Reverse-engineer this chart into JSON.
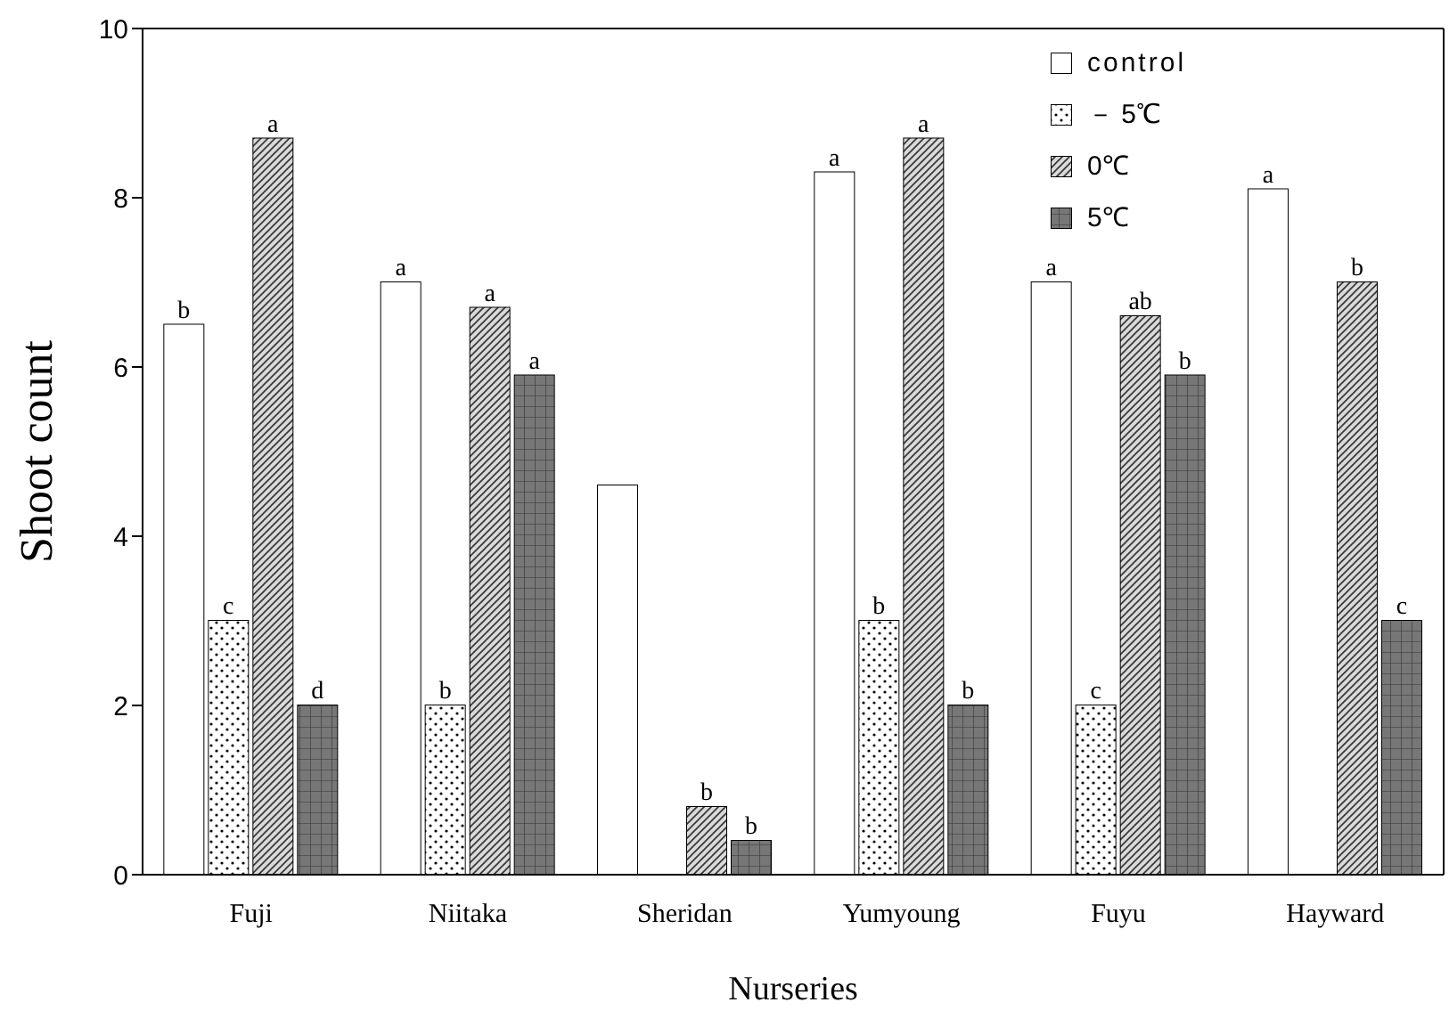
{
  "chart_data": {
    "type": "bar",
    "xlabel": "Nurseries",
    "ylabel": "Shoot count",
    "categories": [
      "Fuji",
      "Niitaka",
      "Sheridan",
      "Yumyoung",
      "Fuyu",
      "Hayward"
    ],
    "series": [
      {
        "name": "control",
        "color": "#ffffff",
        "values": [
          6.5,
          7.0,
          4.6,
          8.3,
          7.0,
          8.1
        ],
        "value_labels": [
          "b",
          "a",
          null,
          "a",
          "a",
          "a"
        ]
      },
      {
        "name": "－ 5℃",
        "color": "#ffffff",
        "values": [
          3.0,
          2.0,
          null,
          3.0,
          2.0,
          null
        ],
        "value_labels": [
          "c",
          "b",
          null,
          "b",
          "c",
          null
        ]
      },
      {
        "name": "0℃",
        "color": "#d9d9d9",
        "values": [
          8.7,
          6.7,
          0.8,
          8.7,
          6.6,
          7.0
        ],
        "value_labels": [
          "a",
          "a",
          "b",
          "a",
          "ab",
          "b"
        ]
      },
      {
        "name": "5℃",
        "color": "#777777",
        "values": [
          2.0,
          5.9,
          0.4,
          2.0,
          5.9,
          3.0
        ],
        "value_labels": [
          "d",
          "a",
          "b",
          "b",
          "b",
          "c"
        ]
      }
    ],
    "ylim": [
      0,
      10
    ],
    "yticks": [
      0,
      2,
      4,
      6,
      8,
      10
    ],
    "grid": false,
    "legend": "top right"
  }
}
